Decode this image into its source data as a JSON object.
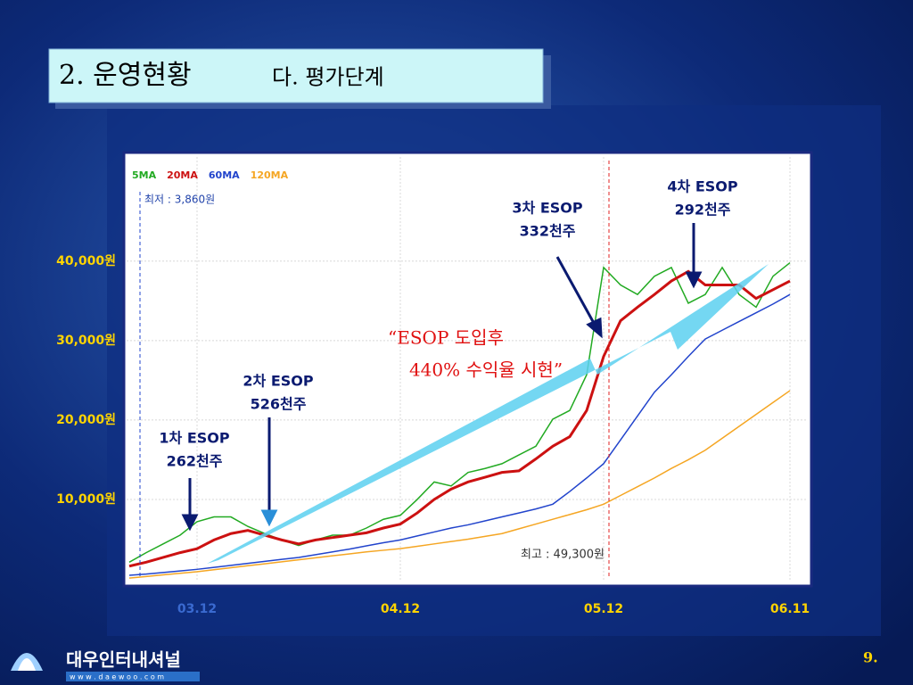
{
  "slide": {
    "section": "2. 운영현황",
    "subsection": "다. 평가단계",
    "page": "9.",
    "logo": "대우인터내셔널",
    "logo_url": "w w w . d a e w o o . c o m"
  },
  "chart_data": {
    "type": "line",
    "categories": [
      null,
      null,
      null,
      null,
      "03.12",
      null,
      null,
      null,
      null,
      null,
      null,
      null,
      null,
      null,
      null,
      null,
      "04.12",
      null,
      null,
      null,
      null,
      null,
      null,
      null,
      null,
      null,
      null,
      null,
      "05.12",
      null,
      null,
      null,
      null,
      null,
      null,
      null,
      null,
      null,
      null,
      "06.11"
    ],
    "ylim": [
      0,
      53000
    ],
    "yticks": [
      {
        "value": 10000,
        "label": "10,000원"
      },
      {
        "value": 20000,
        "label": "20,000원"
      },
      {
        "value": 30000,
        "label": "30,000원"
      },
      {
        "value": 40000,
        "label": "40,000원"
      }
    ],
    "grid": true,
    "series": [
      {
        "name": "5MA",
        "color": "#22aa22",
        "values": [
          2100,
          3300,
          4400,
          5500,
          7200,
          7800,
          7800,
          6600,
          5700,
          4900,
          4200,
          4900,
          5500,
          5500,
          6400,
          7500,
          8000,
          10000,
          12200,
          11700,
          13400,
          13900,
          14500,
          15600,
          16700,
          20100,
          21200,
          25700,
          39200,
          37000,
          35800,
          38100,
          39200,
          34700,
          35800,
          39200,
          35800,
          34200,
          38100,
          39800
        ]
      },
      {
        "name": "20MA",
        "color": "#cc1111",
        "values": [
          1600,
          2100,
          2700,
          3300,
          3800,
          4900,
          5700,
          6100,
          5500,
          4900,
          4400,
          4900,
          5200,
          5500,
          5800,
          6400,
          6900,
          8300,
          10000,
          11300,
          12200,
          12800,
          13400,
          13600,
          15100,
          16700,
          17900,
          21200,
          28000,
          32500,
          34200,
          35800,
          37500,
          38700,
          37000,
          37000,
          37000,
          35300,
          36400,
          37500
        ]
      },
      {
        "name": "60MA",
        "color": "#2244cc",
        "values": [
          450,
          600,
          800,
          1000,
          1200,
          1450,
          1700,
          1950,
          2200,
          2450,
          2700,
          3050,
          3400,
          3750,
          4150,
          4550,
          4900,
          5400,
          5900,
          6400,
          6800,
          7300,
          7800,
          8300,
          8800,
          9400,
          11000,
          12700,
          14500,
          17500,
          20500,
          23500,
          25700,
          28000,
          30200,
          31300,
          32400,
          33500,
          34600,
          35800
        ]
      },
      {
        "name": "120MA",
        "color": "#f5a623",
        "values": [
          100,
          300,
          500,
          700,
          900,
          1150,
          1400,
          1650,
          1900,
          2150,
          2400,
          2650,
          2900,
          3150,
          3400,
          3600,
          3800,
          4100,
          4400,
          4700,
          5000,
          5350,
          5700,
          6300,
          6900,
          7500,
          8100,
          8700,
          9400,
          10500,
          11600,
          12700,
          13900,
          15000,
          16200,
          17700,
          19200,
          20700,
          22200,
          23700
        ]
      }
    ],
    "min_label": "최저 : 3,860원",
    "max_label": "최고 : 49,300원",
    "esop": [
      [
        "1차 ESOP",
        "262천주"
      ],
      [
        "2차 ESOP",
        "526천주"
      ],
      [
        "3차 ESOP",
        "332천주"
      ],
      [
        "4차 ESOP",
        "292천주"
      ]
    ],
    "callout": [
      "“ESOP 도입후",
      "440% 수익율 시현”"
    ]
  }
}
